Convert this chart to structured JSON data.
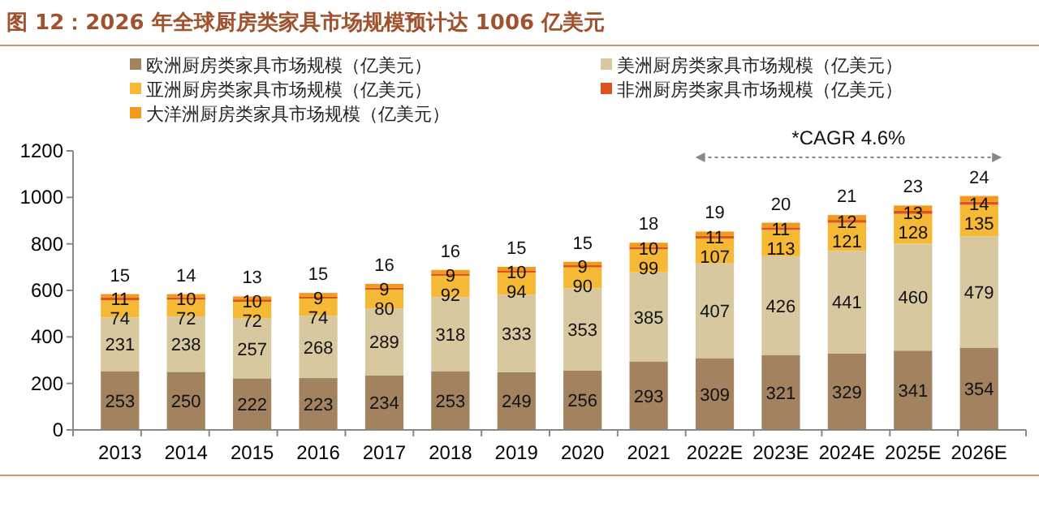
{
  "chart_data": {
    "type": "bar",
    "stacked": true,
    "title": "图 12：2026 年全球厨房类家具市场规模预计达 1006 亿美元",
    "categories": [
      "2013",
      "2014",
      "2015",
      "2016",
      "2017",
      "2018",
      "2019",
      "2020",
      "2021",
      "2022E",
      "2023E",
      "2024E",
      "2025E",
      "2026E"
    ],
    "series": [
      {
        "name": "欧洲厨房类家具市场规模（亿美元）",
        "color": "#a3825f",
        "values": [
          253,
          250,
          222,
          223,
          234,
          253,
          249,
          256,
          293,
          309,
          321,
          329,
          341,
          354
        ]
      },
      {
        "name": "美洲厨房类家具市场规模（亿美元）",
        "color": "#d8c8a0",
        "values": [
          231,
          238,
          257,
          268,
          289,
          318,
          333,
          353,
          385,
          407,
          426,
          441,
          460,
          479
        ]
      },
      {
        "name": "亚洲厨房类家具市场规模（亿美元）",
        "color": "#f5b936",
        "values": [
          74,
          72,
          72,
          74,
          80,
          92,
          94,
          90,
          99,
          107,
          113,
          121,
          128,
          135
        ]
      },
      {
        "name": "非洲厨房类家具市场规模（亿美元）",
        "color": "#d9541e",
        "values": [
          11,
          10,
          10,
          9,
          9,
          9,
          10,
          9,
          10,
          11,
          11,
          12,
          13,
          14
        ]
      },
      {
        "name": "大洋洲厨房类家具市场规模（亿美元）",
        "color": "#f39a1a",
        "values": [
          15,
          14,
          13,
          15,
          16,
          16,
          15,
          15,
          18,
          19,
          20,
          21,
          23,
          24
        ]
      }
    ],
    "ylim": [
      0,
      1200
    ],
    "yticks": [
      0,
      200,
      400,
      600,
      800,
      1000,
      1200
    ],
    "grid": false,
    "legend": "top",
    "data_labels": true,
    "annotations": [
      "*CAGR 4.6%"
    ]
  }
}
